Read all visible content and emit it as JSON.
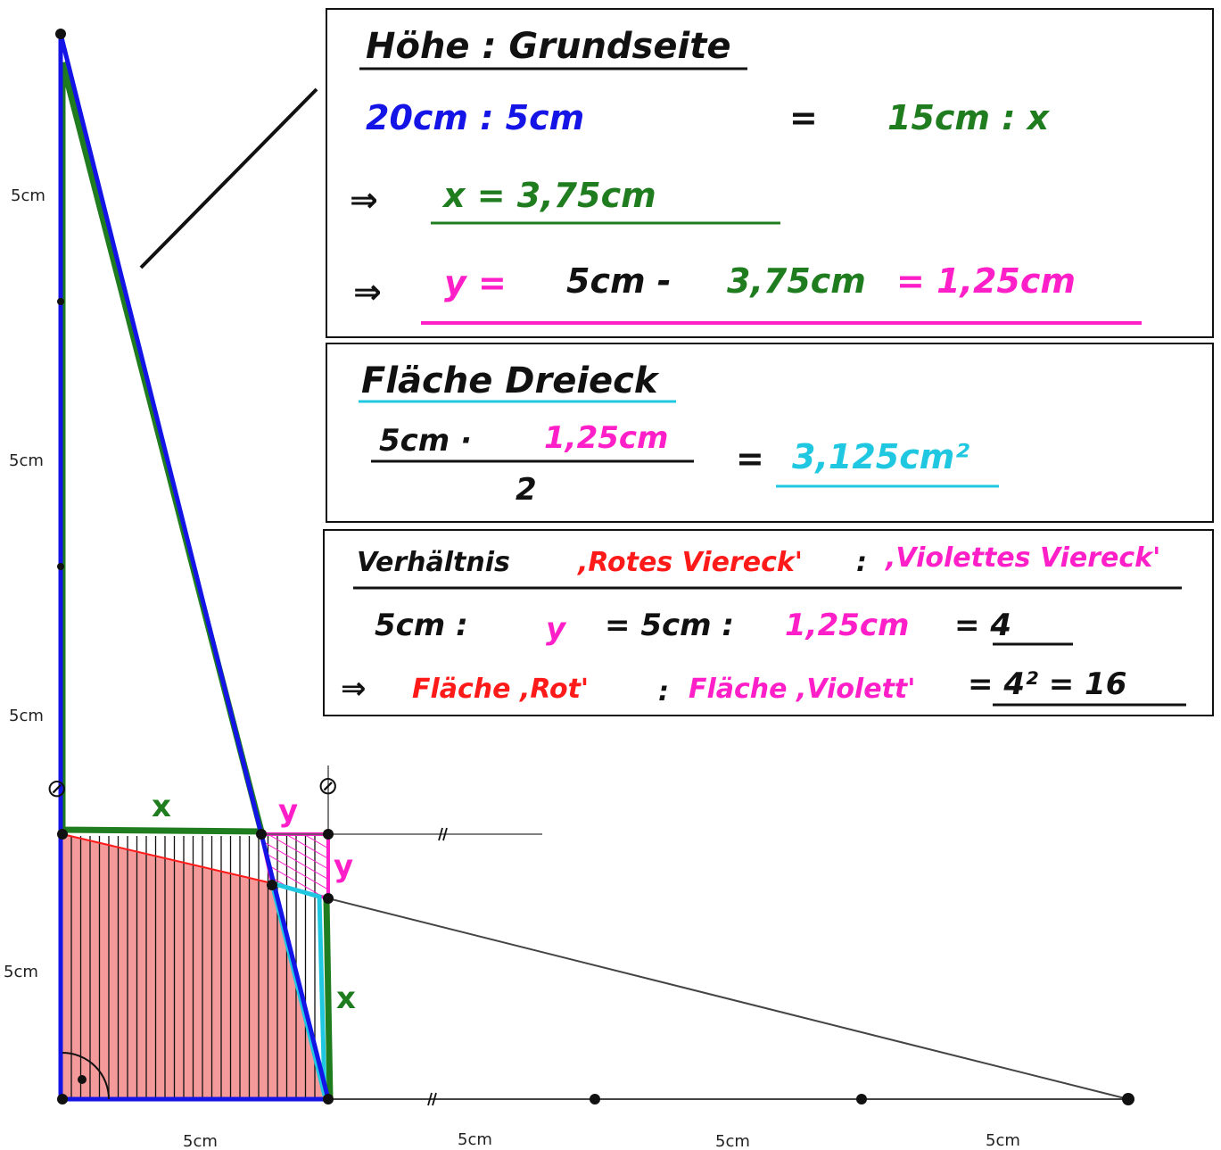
{
  "colors": {
    "blue": "#1414e6",
    "green": "#1f7d1f",
    "magenta": "#ff1fc8",
    "cyan": "#1fc8e0",
    "red": "#ff1a1a",
    "fill_red": "#f59a9a",
    "black": "#111111"
  },
  "axis_labels": {
    "left": [
      "5cm",
      "5cm",
      "5cm",
      "5cm"
    ],
    "bottom": [
      "5cm",
      "5cm",
      "5cm",
      "5cm"
    ]
  },
  "figure_labels": {
    "x_top": "x",
    "x_right": "x",
    "y_top": "y",
    "y_right": "y",
    "parallel_mark": "//",
    "circle_mark": "⊘"
  },
  "box1": {
    "title": "Höhe : Grundseite",
    "line1_left": "20cm : 5cm",
    "line1_eq": "=",
    "line1_right": "15cm : x",
    "arrow": "⇒",
    "line2": "x = 3,75cm",
    "line3_y": "y =",
    "line3_rest_a": "5cm -",
    "line3_rest_b": "3,75cm",
    "line3_rest_c": "= 1,25cm"
  },
  "box2": {
    "title": "Fläche Dreieck",
    "num_a": "5cm ·",
    "num_b": "1,25cm",
    "den": "2",
    "eq": "=",
    "result": "3,125cm²"
  },
  "box3": {
    "title_a": "Verhältnis",
    "title_b": ",Rotes Viereck'",
    "title_c": ":",
    "title_d": ",Violettes Viereck'",
    "line1_a": "5cm :",
    "line1_b": "y",
    "line1_c": "= 5cm :",
    "line1_d": "1,25cm",
    "line1_e": "= 4",
    "arrow": "⇒",
    "line2_a": "Fläche ,Rot'",
    "line2_b": ":",
    "line2_c": "Fläche ,Violett'",
    "line2_d": "= 4² = 16"
  }
}
